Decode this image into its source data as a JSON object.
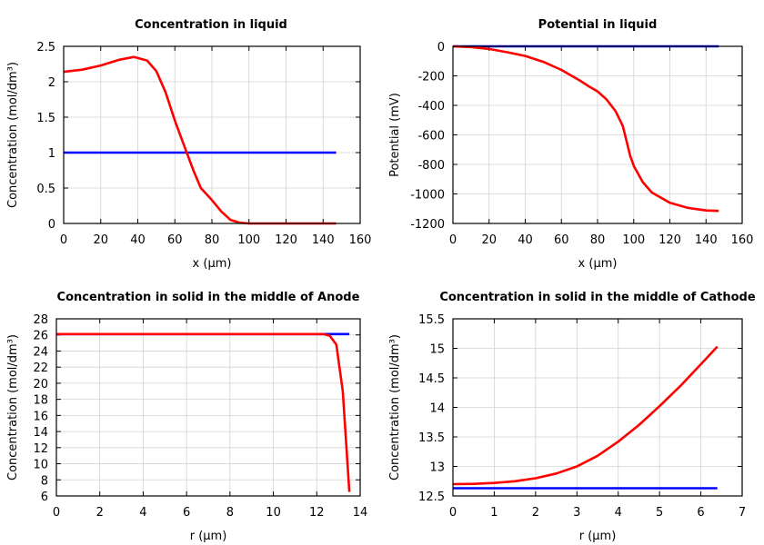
{
  "chart_data": [
    {
      "type": "line",
      "title": "Concentration in liquid",
      "xlabel": "x (µm)",
      "ylabel": "Concentration (mol/dm³)",
      "xlim": [
        0,
        160
      ],
      "ylim": [
        0,
        2.5
      ],
      "xticks": [
        "0",
        "20",
        "40",
        "60",
        "80",
        "100",
        "120",
        "140",
        "160"
      ],
      "yticks": [
        "0",
        "0.5",
        "1",
        "1.5",
        "2",
        "2.5"
      ],
      "grid": true,
      "series": [
        {
          "color": "#0000ff",
          "x": [
            0,
            147
          ],
          "y": [
            1,
            1
          ]
        },
        {
          "color": "#ff0000",
          "x": [
            0,
            10,
            20,
            30,
            38,
            45,
            50,
            55,
            60,
            65,
            70,
            74,
            80,
            85,
            90,
            95,
            100,
            147
          ],
          "y": [
            2.14,
            2.17,
            2.23,
            2.31,
            2.35,
            2.3,
            2.15,
            1.85,
            1.45,
            1.1,
            0.75,
            0.5,
            0.33,
            0.17,
            0.05,
            0.01,
            0,
            0
          ]
        }
      ]
    },
    {
      "type": "line",
      "title": "Potential in liquid",
      "xlabel": "x (µm)",
      "ylabel": "Potential (mV)",
      "xlim": [
        0,
        160
      ],
      "ylim": [
        -1200,
        0
      ],
      "xticks": [
        "0",
        "20",
        "40",
        "60",
        "80",
        "100",
        "120",
        "140",
        "160"
      ],
      "yticks": [
        "-1200",
        "-1000",
        "-800",
        "-600",
        "-400",
        "-200",
        "0"
      ],
      "grid": true,
      "series": [
        {
          "color": "#0000ff",
          "x": [
            0,
            147
          ],
          "y": [
            0,
            0
          ]
        },
        {
          "color": "#ff0000",
          "x": [
            0,
            10,
            20,
            30,
            40,
            50,
            60,
            70,
            75,
            80,
            85,
            90,
            94,
            96,
            98,
            100,
            105,
            110,
            120,
            130,
            140,
            147
          ],
          "y": [
            0,
            -5,
            -18,
            -40,
            -65,
            -105,
            -160,
            -230,
            -270,
            -305,
            -360,
            -440,
            -540,
            -640,
            -740,
            -810,
            -920,
            -990,
            -1060,
            -1095,
            -1112,
            -1115
          ]
        }
      ]
    },
    {
      "type": "line",
      "title": "Concentration in solid in the middle of Anode",
      "xlabel": "r (µm)",
      "ylabel": "Concentration (mol/dm³)",
      "xlim": [
        0,
        14
      ],
      "ylim": [
        6,
        28
      ],
      "xticks": [
        "0",
        "2",
        "4",
        "6",
        "8",
        "10",
        "12",
        "14"
      ],
      "yticks": [
        "6",
        "8",
        "10",
        "12",
        "14",
        "16",
        "18",
        "20",
        "22",
        "24",
        "26",
        "28"
      ],
      "grid": true,
      "series": [
        {
          "color": "#0000ff",
          "x": [
            0,
            13.5
          ],
          "y": [
            26.1,
            26.1
          ]
        },
        {
          "color": "#ff0000",
          "x": [
            0,
            12.3,
            12.6,
            12.9,
            13.2,
            13.5
          ],
          "y": [
            26.1,
            26.1,
            25.9,
            24.8,
            19,
            6.5
          ]
        }
      ]
    },
    {
      "type": "line",
      "title": "Concentration in solid in the middle of Cathode",
      "xlabel": "r (µm)",
      "ylabel": "Concentration (mol/dm³)",
      "xlim": [
        0,
        7
      ],
      "ylim": [
        12.5,
        15.5
      ],
      "xticks": [
        "0",
        "1",
        "2",
        "3",
        "4",
        "5",
        "6",
        "7"
      ],
      "yticks": [
        "12.5",
        "13",
        "13.5",
        "14",
        "14.5",
        "15",
        "15.5"
      ],
      "grid": true,
      "series": [
        {
          "color": "#0000ff",
          "x": [
            0,
            6.4
          ],
          "y": [
            12.63,
            12.63
          ]
        },
        {
          "color": "#ff0000",
          "x": [
            0,
            0.5,
            1,
            1.5,
            2,
            2.5,
            3,
            3.5,
            4,
            4.5,
            5,
            5.5,
            6,
            6.4
          ],
          "y": [
            12.7,
            12.705,
            12.72,
            12.75,
            12.8,
            12.88,
            13.0,
            13.18,
            13.42,
            13.7,
            14.02,
            14.36,
            14.73,
            15.03
          ]
        }
      ]
    }
  ]
}
